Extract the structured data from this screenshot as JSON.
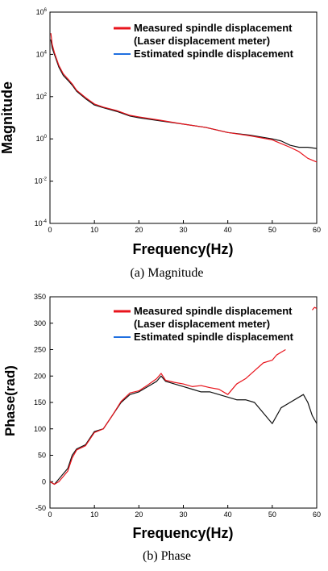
{
  "colors": {
    "measured": "#e8141c",
    "estimated": "#1f6fe0",
    "black_trace": "#111111",
    "frame": "#000000"
  },
  "chart_data": [
    {
      "type": "line",
      "panel": "magnitude",
      "caption": "(a) Magnitude",
      "xlabel": "Frequency(Hz)",
      "ylabel": "Magnitude",
      "y_scale": "log",
      "xlim": [
        0,
        60
      ],
      "ylim": [
        0.0001,
        1000000
      ],
      "x_ticks": [
        0,
        10,
        20,
        30,
        40,
        50,
        60
      ],
      "y_ticks": [
        {
          "value": 0.0001,
          "base": "10",
          "exp": "-4"
        },
        {
          "value": 0.01,
          "base": "10",
          "exp": "-2"
        },
        {
          "value": 1,
          "base": "10",
          "exp": "0"
        },
        {
          "value": 100,
          "base": "10",
          "exp": "2"
        },
        {
          "value": 10000,
          "base": "10",
          "exp": "4"
        },
        {
          "value": 1000000,
          "base": "10",
          "exp": "6"
        }
      ],
      "grid": false,
      "legend_position": "top-right",
      "series": [
        {
          "name": "Estimated spindle displacement",
          "color": "#111111",
          "legend_color": "#1f6fe0",
          "x": [
            0.2,
            0.5,
            1,
            1.5,
            2,
            3,
            4,
            5,
            6,
            8,
            10,
            12,
            15,
            18,
            20,
            25,
            30,
            35,
            40,
            45,
            50,
            52,
            54,
            56,
            58,
            60
          ],
          "y": [
            50000,
            20000,
            10000,
            5000,
            2500,
            1000,
            600,
            350,
            180,
            80,
            40,
            30,
            20,
            12,
            10,
            7,
            5,
            3.5,
            2,
            1.5,
            1,
            0.8,
            0.5,
            0.4,
            0.4,
            0.35
          ]
        },
        {
          "name": "Measured spindle displacement\n(Laser displacement meter)",
          "color": "#e8141c",
          "x": [
            0.2,
            0.5,
            1,
            1.5,
            2,
            3,
            4,
            5,
            6,
            8,
            10,
            12,
            15,
            18,
            20,
            25,
            30,
            35,
            40,
            45,
            50,
            52,
            54,
            56,
            58,
            60
          ],
          "y": [
            100000,
            30000,
            12000,
            6000,
            3000,
            1200,
            700,
            400,
            200,
            90,
            45,
            32,
            22,
            13,
            11,
            7.5,
            5,
            3.5,
            2,
            1.4,
            0.9,
            0.6,
            0.4,
            0.25,
            0.12,
            0.08
          ]
        }
      ]
    },
    {
      "type": "line",
      "panel": "phase",
      "caption": "(b) Phase",
      "xlabel": "Frequency(Hz)",
      "ylabel": "Phase(rad)",
      "y_scale": "linear",
      "xlim": [
        0,
        60
      ],
      "ylim": [
        -50,
        350
      ],
      "x_ticks": [
        0,
        10,
        20,
        30,
        40,
        50,
        60
      ],
      "y_ticks": [
        -50,
        0,
        50,
        100,
        150,
        200,
        250,
        300,
        350
      ],
      "grid": false,
      "legend_position": "top-right",
      "series": [
        {
          "name": "Estimated spindle displacement",
          "color": "#111111",
          "legend_color": "#1f6fe0",
          "x": [
            0,
            1,
            2,
            3,
            4,
            5,
            6,
            8,
            10,
            12,
            14,
            16,
            18,
            20,
            22,
            24,
            25,
            26,
            28,
            30,
            32,
            34,
            36,
            38,
            40,
            42,
            44,
            46,
            48,
            50,
            52,
            54,
            56,
            57,
            58,
            59,
            60
          ],
          "y": [
            0,
            -5,
            5,
            15,
            25,
            50,
            62,
            70,
            95,
            100,
            125,
            150,
            165,
            170,
            180,
            190,
            200,
            190,
            185,
            180,
            175,
            170,
            170,
            165,
            160,
            155,
            155,
            150,
            130,
            110,
            140,
            150,
            160,
            165,
            150,
            125,
            110
          ]
        },
        {
          "name": "Measured spindle displacement\n(Laser displacement meter)",
          "color": "#e8141c",
          "x": [
            0,
            1,
            2,
            3,
            4,
            5,
            6,
            8,
            10,
            12,
            14,
            16,
            18,
            20,
            22,
            24,
            25,
            26,
            28,
            30,
            32,
            34,
            36,
            38,
            40,
            42,
            44,
            46,
            48,
            50,
            51,
            52,
            53
          ],
          "y": [
            0,
            -5,
            0,
            10,
            20,
            45,
            60,
            68,
            93,
            100,
            125,
            152,
            168,
            172,
            183,
            195,
            205,
            192,
            188,
            185,
            180,
            182,
            178,
            175,
            165,
            185,
            195,
            210,
            225,
            230,
            240,
            245,
            250
          ]
        },
        {
          "name": "",
          "color": "#e8141c",
          "x": [
            59,
            59.5,
            60
          ],
          "y": [
            325,
            330,
            328
          ]
        }
      ]
    }
  ]
}
